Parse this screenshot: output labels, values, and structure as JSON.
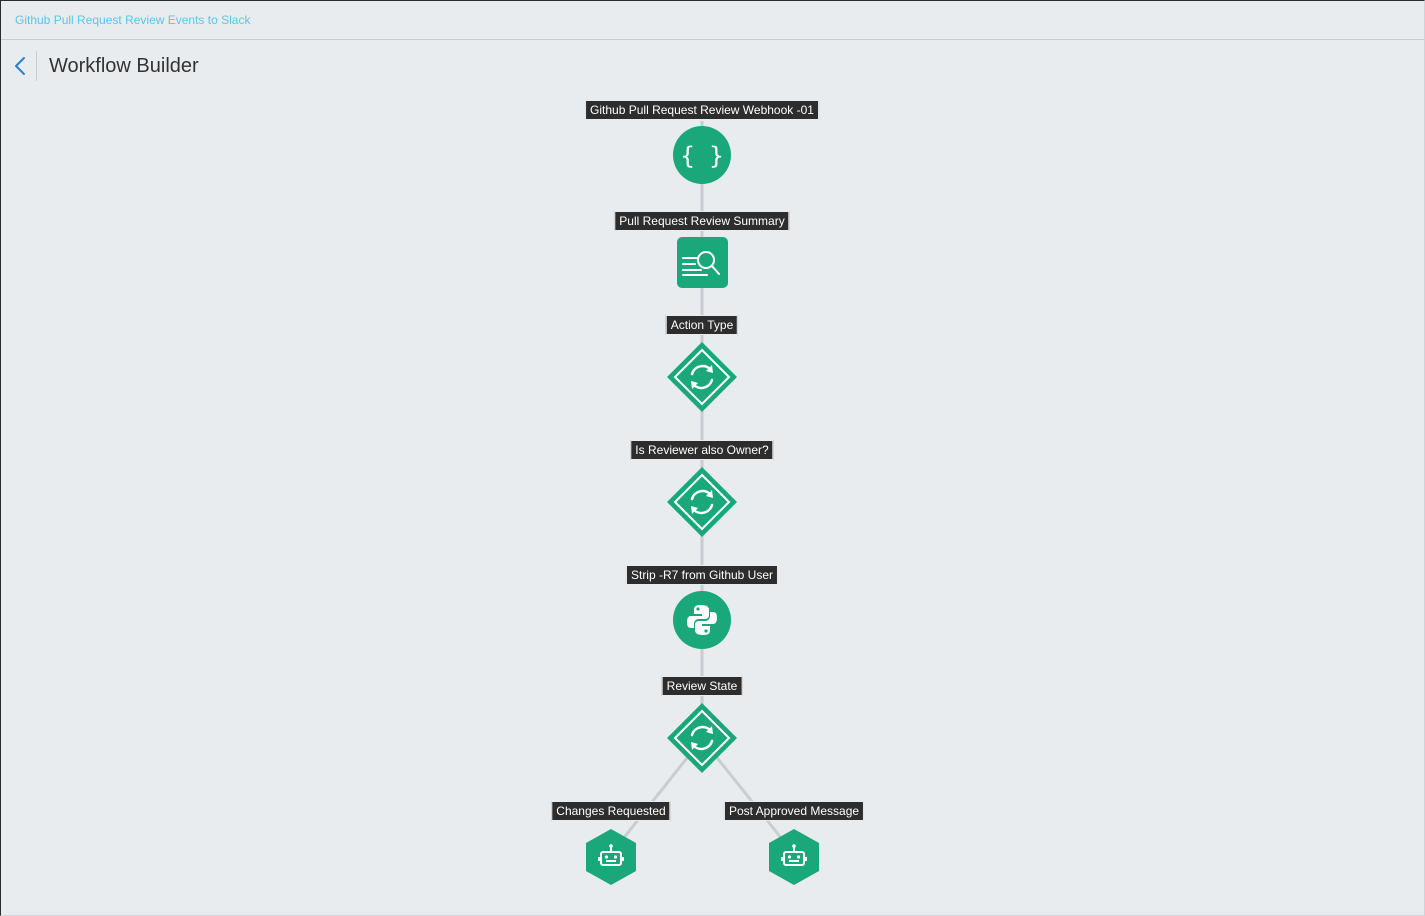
{
  "breadcrumb": {
    "label": "Github Pull Request Review Events to Slack"
  },
  "header": {
    "title": "Workflow Builder"
  },
  "colors": {
    "node_green": "#1aa87a",
    "edge_gray": "#c9cdd1",
    "label_bg": "#2d2d2d",
    "breadcrumb_link": "#5bc5ea"
  },
  "nodes": [
    {
      "label": "Github Pull Request Review Webhook -01",
      "icon": "braces-icon",
      "shape": "circle"
    },
    {
      "label": "Pull Request Review Summary",
      "icon": "search-list-icon",
      "shape": "rounded-square"
    },
    {
      "label": "Action Type",
      "icon": "refresh-icon",
      "shape": "diamond"
    },
    {
      "label": "Is Reviewer also Owner?",
      "icon": "refresh-icon",
      "shape": "diamond"
    },
    {
      "label": "Strip -R7 from Github User",
      "icon": "python-icon",
      "shape": "circle"
    },
    {
      "label": "Review State",
      "icon": "refresh-icon",
      "shape": "diamond"
    },
    {
      "label": "Changes Requested",
      "icon": "robot-icon",
      "shape": "hexagon"
    },
    {
      "label": "Post Approved Message",
      "icon": "robot-icon",
      "shape": "hexagon"
    }
  ]
}
